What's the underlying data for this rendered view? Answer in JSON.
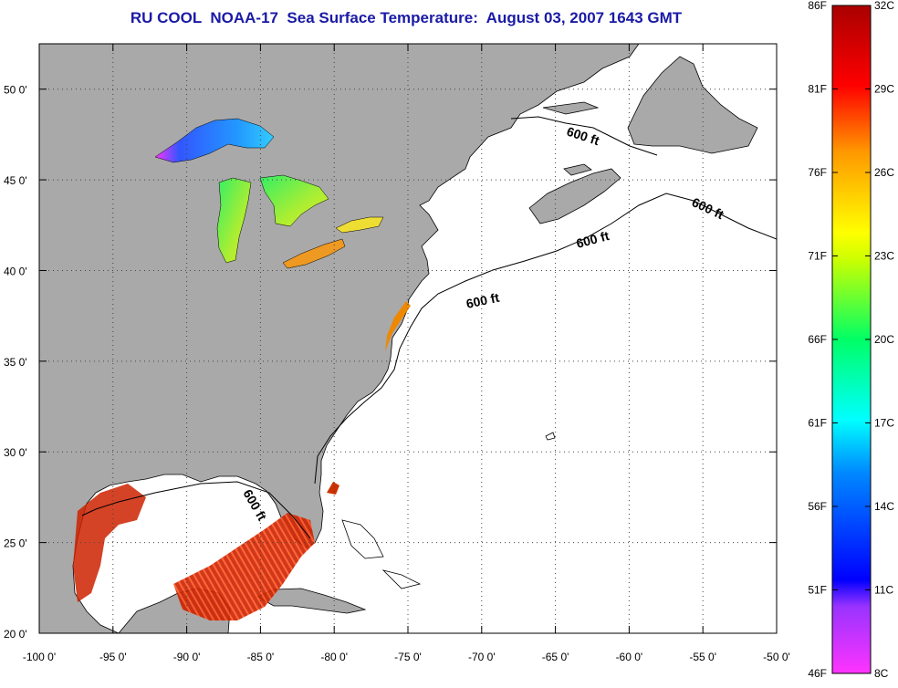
{
  "title": "RU COOL  NOAA-17  Sea Surface Temperature:  August 03, 2007 1643 GMT",
  "map": {
    "lon_range": [
      -100,
      -50
    ],
    "lat_range": [
      20,
      52.5
    ],
    "lon_ticks": [
      "-100 0'",
      "-95 0'",
      "-90 0'",
      "-85 0'",
      "-80 0'",
      "-75 0'",
      "-70 0'",
      "-65 0'",
      "-60 0'",
      "-55 0'",
      "-50 0'"
    ],
    "lat_ticks": [
      "50 0'",
      "45 0'",
      "40 0'",
      "35 0'",
      "30 0'",
      "25 0'",
      "20 0'"
    ],
    "isobath_labels": [
      "600 ft",
      "600 ft",
      "600 ft",
      "600 ft",
      "600 ft"
    ],
    "colors": {
      "land": "#a9a9a9",
      "ocean": "#ffffff",
      "border": "#000000"
    }
  },
  "colorbar": {
    "celsius": [
      "32C",
      "29C",
      "26C",
      "23C",
      "20C",
      "17C",
      "14C",
      "11C",
      "8C"
    ],
    "fahrenheit": [
      "86F",
      "81F",
      "76F",
      "71F",
      "66F",
      "61F",
      "56F",
      "51F",
      "46F"
    ],
    "range_c": [
      8,
      32
    ]
  }
}
